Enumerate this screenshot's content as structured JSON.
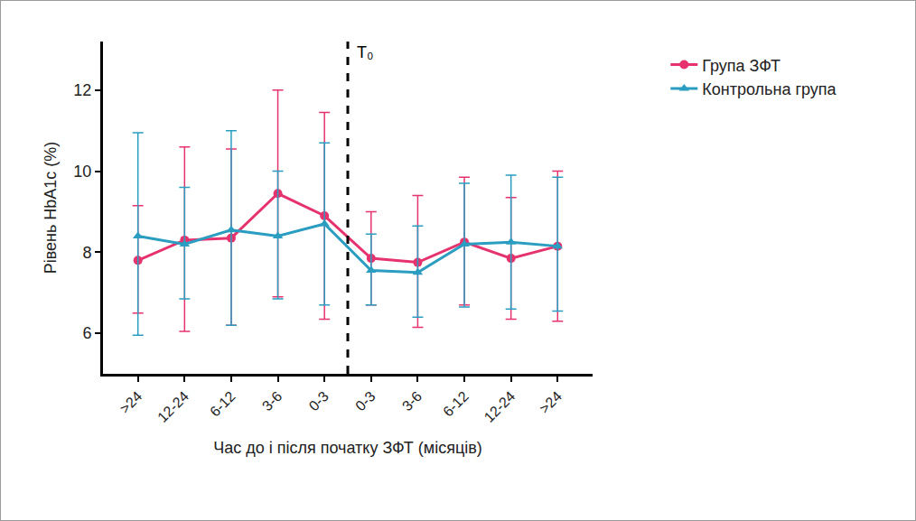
{
  "chart_data": {
    "type": "line",
    "x_label": "Час до і після початку ЗФТ (місяців)",
    "y_label": "Рівень HbA1c (%)",
    "annotation": "T₀",
    "categories": [
      ">24",
      "12-24",
      "6-12",
      "3-6",
      "0-3",
      "0-3",
      "3-6",
      "6-12",
      "12-24",
      ">24"
    ],
    "ylim": [
      5,
      13.2
    ],
    "yticks": [
      6,
      8,
      10,
      12
    ],
    "grid": false,
    "legend": "top right",
    "series": [
      {
        "name": "Група ЗФТ",
        "color": "#e6336e",
        "marker": "circle",
        "values": [
          7.8,
          8.3,
          8.35,
          9.45,
          8.9,
          7.85,
          7.75,
          8.25,
          7.85,
          8.15
        ],
        "upper": [
          9.15,
          10.6,
          10.55,
          12.0,
          11.45,
          9.0,
          9.4,
          9.85,
          9.35,
          10.0
        ],
        "lower": [
          6.5,
          6.05,
          6.2,
          6.9,
          6.35,
          6.7,
          6.15,
          6.7,
          6.35,
          6.3
        ]
      },
      {
        "name": "Контрольна група",
        "color": "#2a9dc0",
        "marker": "triangle-up",
        "values": [
          8.4,
          8.2,
          8.55,
          8.4,
          8.7,
          7.55,
          7.5,
          8.2,
          8.25,
          8.15
        ],
        "upper": [
          10.95,
          9.6,
          11.0,
          10.0,
          10.7,
          8.45,
          8.65,
          9.7,
          9.9,
          9.85
        ],
        "lower": [
          5.95,
          6.85,
          6.2,
          6.85,
          6.7,
          6.7,
          6.4,
          6.65,
          6.6,
          6.55
        ]
      }
    ]
  }
}
